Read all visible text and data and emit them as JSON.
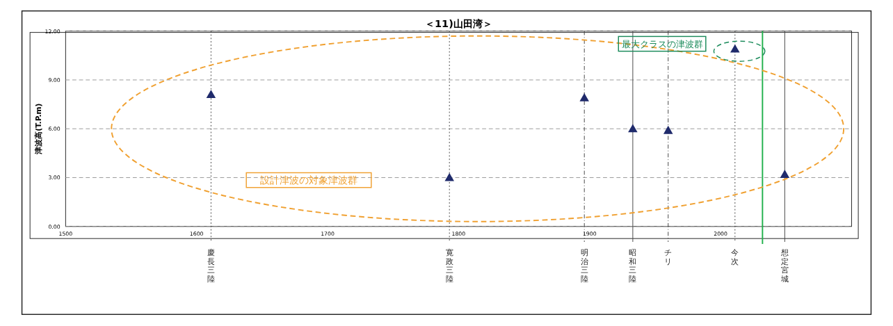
{
  "chart_data": {
    "type": "scatter",
    "title": "＜11)山田湾＞",
    "ylabel": "津波高(T.P.m)",
    "x": [
      1611,
      1793,
      1896,
      1933,
      1960,
      2011,
      2049
    ],
    "series": [
      {
        "color": "#1f2a6b",
        "values": [
          8.1,
          3.0,
          7.9,
          6.0,
          5.9,
          10.9,
          3.2
        ]
      }
    ],
    "marker": "triangle",
    "grid": "y",
    "xlim": [
      1500,
      2100
    ],
    "xticks": [
      1500,
      1600,
      1700,
      1800,
      1900,
      2000
    ],
    "ylim": [
      0,
      12
    ],
    "yticks": [
      {
        "value": 0,
        "label": "0.00"
      },
      {
        "value": 3,
        "label": "3.00"
      },
      {
        "value": 6,
        "label": "6.00"
      },
      {
        "value": 9,
        "label": "9.00"
      },
      {
        "value": 12,
        "label": "12.00"
      }
    ],
    "ref_lines": [
      {
        "axis": "x",
        "value": 1611,
        "label": "慶長三陸",
        "line_style": "dotted",
        "color": "#444444"
      },
      {
        "axis": "x",
        "value": 1793,
        "label": "寛政三陸",
        "line_style": "dotted",
        "color": "#444444"
      },
      {
        "axis": "x",
        "value": 1896,
        "label": "明治三陸",
        "line_style": "dashed",
        "color": "#444444"
      },
      {
        "axis": "x",
        "value": 1933,
        "label": "昭和三陸",
        "line_style": "solid",
        "color": "#444444"
      },
      {
        "axis": "x",
        "value": 1960,
        "label": "チリ",
        "line_style": "dashed",
        "color": "#444444"
      },
      {
        "axis": "x",
        "value": 2011,
        "label": "今次",
        "line_style": "dotted",
        "color": "#444444"
      },
      {
        "axis": "x",
        "value": 2049,
        "label": "想定宮城",
        "line_style": "solid",
        "color": "#444444"
      },
      {
        "axis": "x",
        "value": 2032,
        "color": "#22b14c",
        "line_style": "solid"
      }
    ],
    "annotations": [
      "設計津波の対象津波群",
      "最大クラスの津波群"
    ]
  }
}
